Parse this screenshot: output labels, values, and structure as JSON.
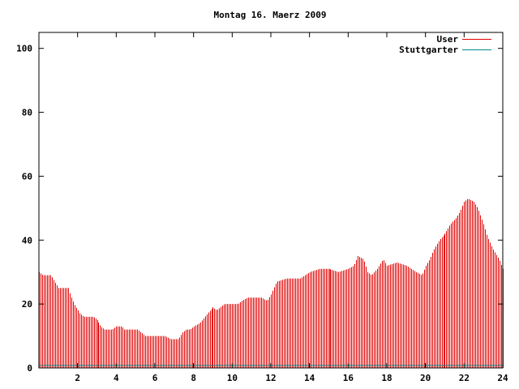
{
  "chart_data": {
    "type": "bar",
    "title": "Montag 16. Maerz 2009",
    "xlabel": "",
    "ylabel": "",
    "xlim": [
      0,
      24
    ],
    "ylim": [
      0,
      105
    ],
    "x_ticks": [
      2,
      4,
      6,
      8,
      10,
      12,
      14,
      16,
      18,
      20,
      22,
      24
    ],
    "y_ticks": [
      0,
      20,
      40,
      60,
      80,
      100
    ],
    "legend_position": "top-right",
    "grid": false,
    "series": [
      {
        "name": "User",
        "color": "#e00000",
        "profile": [
          [
            0.0,
            30
          ],
          [
            0.2,
            29
          ],
          [
            0.6,
            29
          ],
          [
            0.8,
            27
          ],
          [
            1.0,
            25
          ],
          [
            1.5,
            25
          ],
          [
            1.6,
            23
          ],
          [
            1.8,
            20
          ],
          [
            2.1,
            17
          ],
          [
            2.3,
            16
          ],
          [
            2.8,
            16
          ],
          [
            3.0,
            15
          ],
          [
            3.2,
            13
          ],
          [
            3.4,
            12
          ],
          [
            3.8,
            12
          ],
          [
            4.0,
            13
          ],
          [
            4.3,
            13
          ],
          [
            4.4,
            12
          ],
          [
            5.1,
            12
          ],
          [
            5.3,
            11
          ],
          [
            5.5,
            10
          ],
          [
            6.5,
            10
          ],
          [
            6.8,
            9
          ],
          [
            7.2,
            9
          ],
          [
            7.4,
            11
          ],
          [
            7.6,
            12
          ],
          [
            7.8,
            12
          ],
          [
            8.0,
            13
          ],
          [
            8.3,
            14
          ],
          [
            8.7,
            17
          ],
          [
            9.0,
            19
          ],
          [
            9.2,
            18
          ],
          [
            9.4,
            19
          ],
          [
            9.6,
            20
          ],
          [
            10.3,
            20
          ],
          [
            10.5,
            21
          ],
          [
            10.8,
            22
          ],
          [
            11.5,
            22
          ],
          [
            11.8,
            21
          ],
          [
            12.0,
            23
          ],
          [
            12.3,
            27
          ],
          [
            12.8,
            28
          ],
          [
            13.5,
            28
          ],
          [
            14.0,
            30
          ],
          [
            14.5,
            31
          ],
          [
            15.0,
            31
          ],
          [
            15.5,
            30
          ],
          [
            16.0,
            31
          ],
          [
            16.3,
            32
          ],
          [
            16.5,
            35
          ],
          [
            16.8,
            34
          ],
          [
            17.0,
            30
          ],
          [
            17.2,
            29
          ],
          [
            17.5,
            31
          ],
          [
            17.8,
            34
          ],
          [
            18.0,
            32
          ],
          [
            18.5,
            33
          ],
          [
            19.0,
            32
          ],
          [
            19.5,
            30
          ],
          [
            19.8,
            29
          ],
          [
            20.0,
            32
          ],
          [
            20.2,
            34
          ],
          [
            20.4,
            37
          ],
          [
            20.7,
            40
          ],
          [
            21.0,
            42
          ],
          [
            21.3,
            45
          ],
          [
            21.6,
            47
          ],
          [
            21.8,
            49
          ],
          [
            22.0,
            52
          ],
          [
            22.2,
            53
          ],
          [
            22.5,
            52
          ],
          [
            22.7,
            50
          ],
          [
            23.0,
            45
          ],
          [
            23.2,
            41
          ],
          [
            23.5,
            37
          ],
          [
            23.8,
            34
          ],
          [
            24.0,
            31
          ]
        ]
      },
      {
        "name": "Stuttgarter",
        "color": "#008b8b",
        "value": 0.8
      }
    ]
  }
}
